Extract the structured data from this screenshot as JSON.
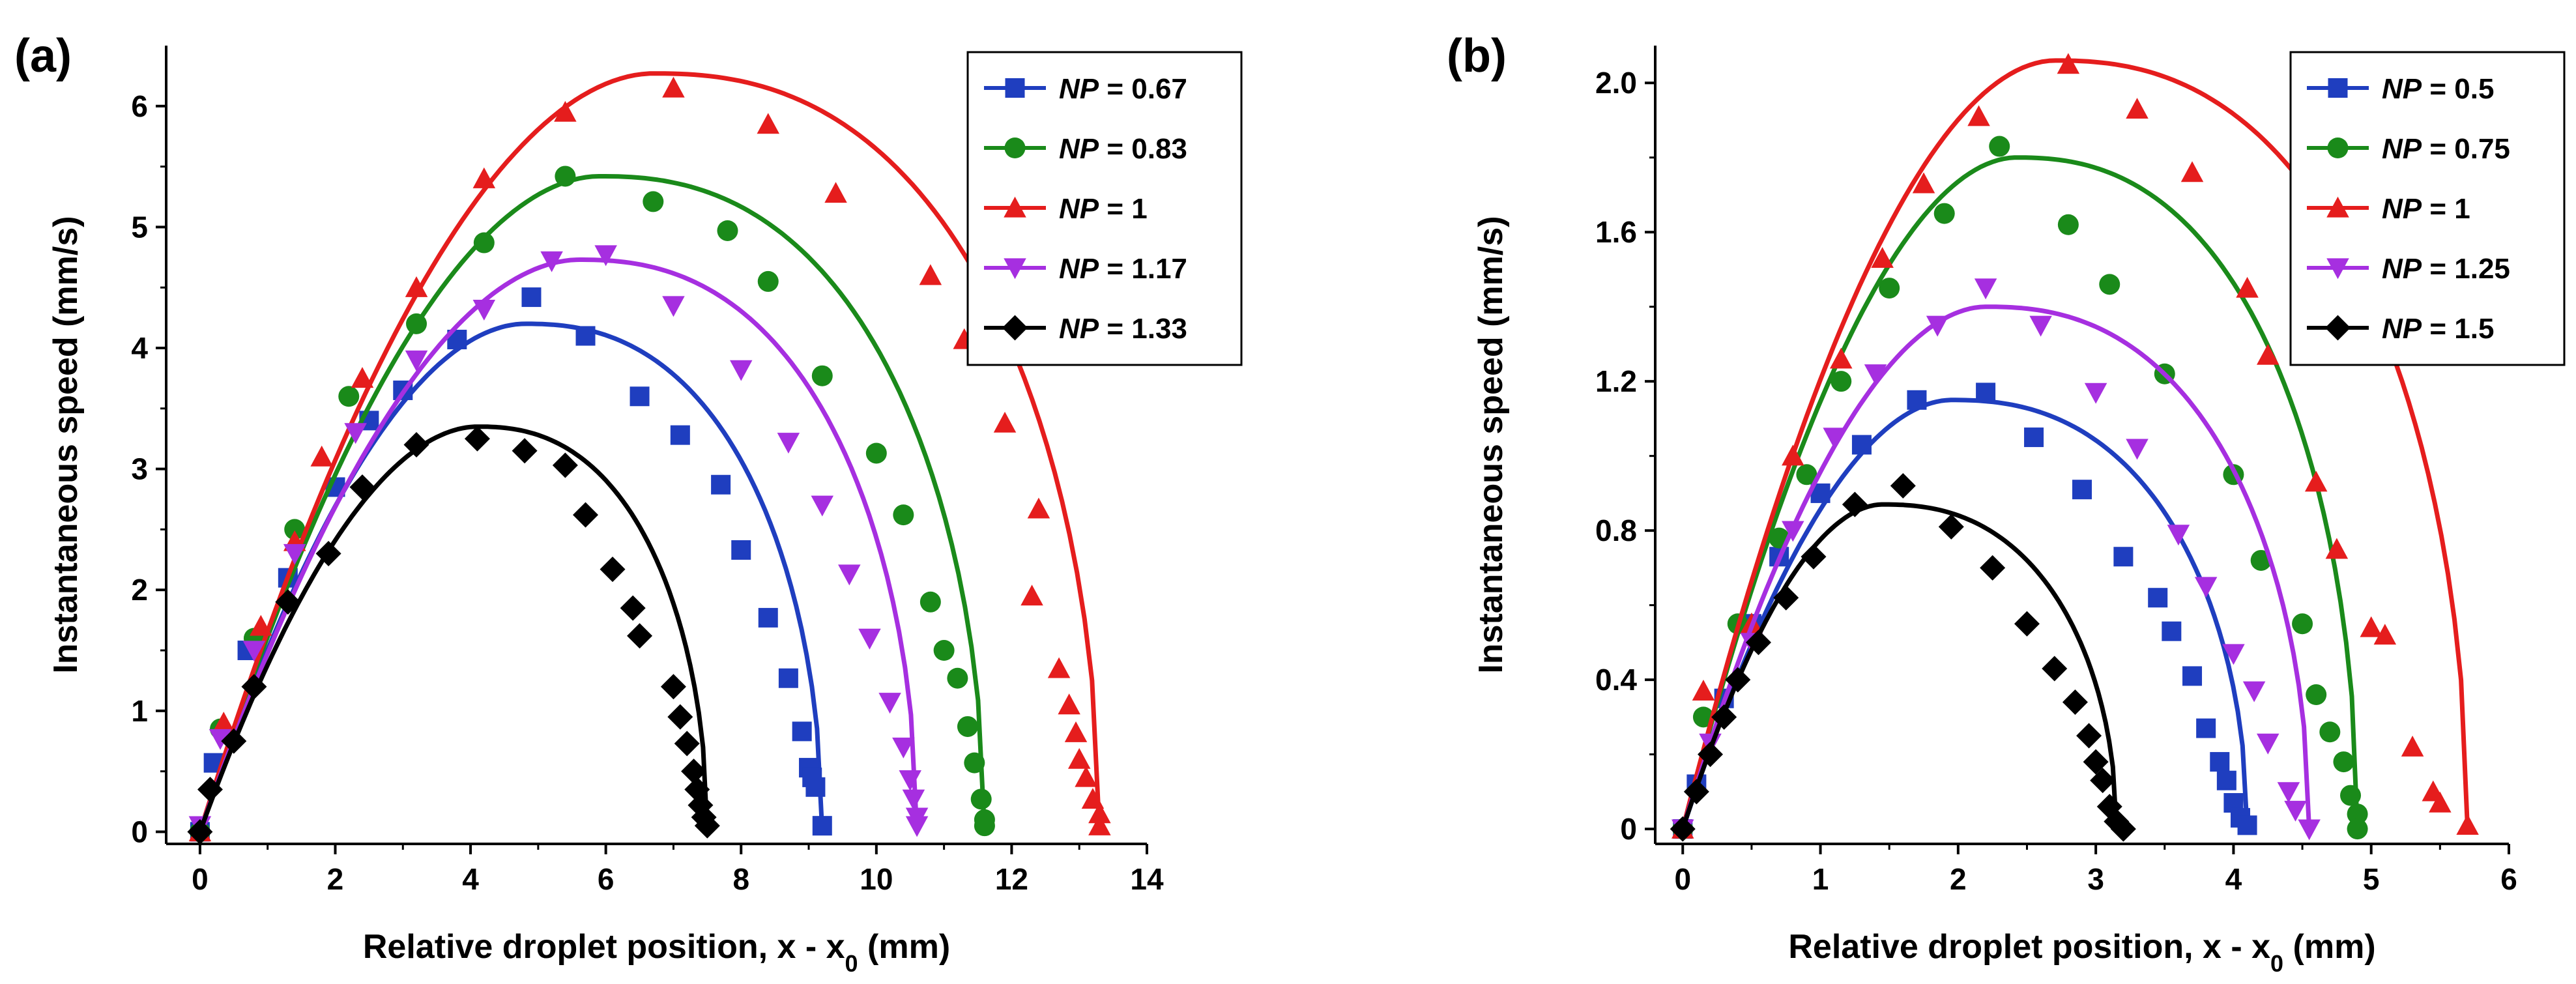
{
  "chart_data": [
    {
      "type": "scatter",
      "panel_label": "(a)",
      "xlabel": "Relative droplet position, x - x",
      "xlabel_sub": "0",
      "xlabel_unit": " (mm)",
      "ylabel": "Instantaneous speed (mm/s)",
      "xlim": [
        -0.5,
        14
      ],
      "ylim": [
        -0.1,
        6.5
      ],
      "xticks": [
        0,
        2,
        4,
        6,
        8,
        10,
        12,
        14
      ],
      "yticks": [
        0,
        1,
        2,
        3,
        4,
        5,
        6
      ],
      "xtick_labels": [
        "0",
        "2",
        "4",
        "6",
        "8",
        "10",
        "12",
        "14"
      ],
      "ytick_labels": [
        "0",
        "1",
        "2",
        "3",
        "4",
        "5",
        "6"
      ],
      "legend_position": "top-right",
      "series": [
        {
          "name": "NP = 0.67",
          "label_var": "NP",
          "label_val": " = 0.67",
          "color": "#1f3ebf",
          "marker": "square",
          "fit_peak": [
            4.8,
            4.2
          ],
          "fit_end": 9.2,
          "points": [
            [
              0,
              0
            ],
            [
              0.2,
              0.57
            ],
            [
              0.7,
              1.5
            ],
            [
              1.3,
              2.1
            ],
            [
              2.0,
              2.85
            ],
            [
              2.5,
              3.4
            ],
            [
              3.0,
              3.65
            ],
            [
              3.8,
              4.07
            ],
            [
              4.9,
              4.42
            ],
            [
              5.7,
              4.1
            ],
            [
              6.5,
              3.6
            ],
            [
              7.1,
              3.28
            ],
            [
              7.7,
              2.87
            ],
            [
              8.0,
              2.33
            ],
            [
              8.4,
              1.77
            ],
            [
              8.7,
              1.27
            ],
            [
              8.9,
              0.83
            ],
            [
              9.0,
              0.53
            ],
            [
              9.05,
              0.45
            ],
            [
              9.1,
              0.37
            ],
            [
              9.2,
              0.05
            ]
          ]
        },
        {
          "name": "NP = 0.83",
          "label_var": "NP",
          "label_val": " = 0.83",
          "color": "#1a8a1a",
          "marker": "circle",
          "fit_peak": [
            5.9,
            5.42
          ],
          "fit_end": 11.6,
          "points": [
            [
              0,
              0
            ],
            [
              0.3,
              0.85
            ],
            [
              0.8,
              1.6
            ],
            [
              1.4,
              2.5
            ],
            [
              2.2,
              3.6
            ],
            [
              3.2,
              4.2
            ],
            [
              4.2,
              4.87
            ],
            [
              5.4,
              5.42
            ],
            [
              6.7,
              5.21
            ],
            [
              7.8,
              4.97
            ],
            [
              8.4,
              4.55
            ],
            [
              9.2,
              3.77
            ],
            [
              10.0,
              3.13
            ],
            [
              10.4,
              2.62
            ],
            [
              10.8,
              1.9
            ],
            [
              11.0,
              1.5
            ],
            [
              11.2,
              1.27
            ],
            [
              11.35,
              0.87
            ],
            [
              11.45,
              0.57
            ],
            [
              11.55,
              0.27
            ],
            [
              11.6,
              0.1
            ],
            [
              11.6,
              0.05
            ]
          ]
        },
        {
          "name": "NP = 1",
          "label_var": "NP",
          "label_val": " = 1",
          "color": "#e51d1d",
          "marker": "triangle-up",
          "fit_peak": [
            6.7,
            6.27
          ],
          "fit_end": 13.3,
          "points": [
            [
              0,
              0
            ],
            [
              0.35,
              0.9
            ],
            [
              0.9,
              1.7
            ],
            [
              1.4,
              2.4
            ],
            [
              1.8,
              3.1
            ],
            [
              2.4,
              3.75
            ],
            [
              3.2,
              4.5
            ],
            [
              4.2,
              5.4
            ],
            [
              5.4,
              5.95
            ],
            [
              7.0,
              6.15
            ],
            [
              8.4,
              5.85
            ],
            [
              9.4,
              5.28
            ],
            [
              10.8,
              4.6
            ],
            [
              11.3,
              4.07
            ],
            [
              11.9,
              3.38
            ],
            [
              12.4,
              2.67
            ],
            [
              12.3,
              1.95
            ],
            [
              12.7,
              1.35
            ],
            [
              12.85,
              1.05
            ],
            [
              12.95,
              0.82
            ],
            [
              13.0,
              0.6
            ],
            [
              13.1,
              0.45
            ],
            [
              13.2,
              0.27
            ],
            [
              13.3,
              0.15
            ],
            [
              13.3,
              0.05
            ]
          ]
        },
        {
          "name": "NP = 1.17",
          "label_var": "NP",
          "label_val": " = 1.17",
          "color": "#a62fe0",
          "marker": "triangle-down",
          "fit_peak": [
            5.6,
            4.73
          ],
          "fit_end": 10.6,
          "points": [
            [
              0,
              0.05
            ],
            [
              0.3,
              0.77
            ],
            [
              0.8,
              1.5
            ],
            [
              1.4,
              2.3
            ],
            [
              2.3,
              3.3
            ],
            [
              3.2,
              3.9
            ],
            [
              4.2,
              4.32
            ],
            [
              5.2,
              4.72
            ],
            [
              6.0,
              4.77
            ],
            [
              7.0,
              4.35
            ],
            [
              8.0,
              3.82
            ],
            [
              8.7,
              3.22
            ],
            [
              9.2,
              2.7
            ],
            [
              9.6,
              2.13
            ],
            [
              9.9,
              1.6
            ],
            [
              10.2,
              1.07
            ],
            [
              10.4,
              0.7
            ],
            [
              10.5,
              0.43
            ],
            [
              10.55,
              0.27
            ],
            [
              10.6,
              0.12
            ],
            [
              10.6,
              0.05
            ]
          ]
        },
        {
          "name": "NP = 1.33",
          "label_var": "NP",
          "label_val": " = 1.33",
          "color": "#000000",
          "marker": "diamond",
          "fit_peak": [
            4.1,
            3.35
          ],
          "fit_end": 7.5,
          "points": [
            [
              0,
              0
            ],
            [
              0.15,
              0.35
            ],
            [
              0.5,
              0.75
            ],
            [
              0.8,
              1.2
            ],
            [
              1.3,
              1.9
            ],
            [
              1.9,
              2.3
            ],
            [
              2.4,
              2.85
            ],
            [
              3.2,
              3.2
            ],
            [
              4.1,
              3.25
            ],
            [
              4.8,
              3.15
            ],
            [
              5.4,
              3.03
            ],
            [
              5.7,
              2.62
            ],
            [
              6.1,
              2.17
            ],
            [
              6.4,
              1.85
            ],
            [
              6.5,
              1.62
            ],
            [
              7.0,
              1.2
            ],
            [
              7.1,
              0.95
            ],
            [
              7.2,
              0.73
            ],
            [
              7.3,
              0.5
            ],
            [
              7.35,
              0.35
            ],
            [
              7.4,
              0.22
            ],
            [
              7.45,
              0.12
            ],
            [
              7.5,
              0.05
            ]
          ]
        }
      ]
    },
    {
      "type": "scatter",
      "panel_label": "(b)",
      "xlabel": "Relative droplet position, x - x",
      "xlabel_sub": "0",
      "xlabel_unit": " (mm)",
      "ylabel": "Instantaneous speed (mm/s)",
      "xlim": [
        -0.2,
        6
      ],
      "ylim": [
        -0.04,
        2.1
      ],
      "xticks": [
        0,
        1,
        2,
        3,
        4,
        5,
        6
      ],
      "yticks": [
        0,
        0.4,
        0.8,
        1.2,
        1.6,
        2.0
      ],
      "xtick_labels": [
        "0",
        "1",
        "2",
        "3",
        "4",
        "5",
        "6"
      ],
      "ytick_labels": [
        "0",
        "0.4",
        "0.8",
        "1.2",
        "1.6",
        "2.0"
      ],
      "legend_position": "top-right",
      "series": [
        {
          "name": "NP = 0.5",
          "label_var": "NP",
          "label_val": " = 0.5",
          "color": "#1f3ebf",
          "marker": "square",
          "fit_peak": [
            1.95,
            1.15
          ],
          "fit_end": 4.1,
          "points": [
            [
              0,
              0
            ],
            [
              0.1,
              0.12
            ],
            [
              0.3,
              0.35
            ],
            [
              0.5,
              0.55
            ],
            [
              0.7,
              0.73
            ],
            [
              1.0,
              0.9
            ],
            [
              1.3,
              1.03
            ],
            [
              1.7,
              1.15
            ],
            [
              2.2,
              1.17
            ],
            [
              2.55,
              1.05
            ],
            [
              2.9,
              0.91
            ],
            [
              3.2,
              0.73
            ],
            [
              3.45,
              0.62
            ],
            [
              3.55,
              0.53
            ],
            [
              3.7,
              0.41
            ],
            [
              3.8,
              0.27
            ],
            [
              3.9,
              0.18
            ],
            [
              3.95,
              0.13
            ],
            [
              4.0,
              0.07
            ],
            [
              4.05,
              0.03
            ],
            [
              4.1,
              0.01
            ]
          ]
        },
        {
          "name": "NP = 0.75",
          "label_var": "NP",
          "label_val": " = 0.75",
          "color": "#1a8a1a",
          "marker": "circle",
          "fit_peak": [
            2.42,
            1.8
          ],
          "fit_end": 4.9,
          "points": [
            [
              0,
              0
            ],
            [
              0.15,
              0.3
            ],
            [
              0.4,
              0.55
            ],
            [
              0.7,
              0.78
            ],
            [
              0.9,
              0.95
            ],
            [
              1.15,
              1.2
            ],
            [
              1.5,
              1.45
            ],
            [
              1.9,
              1.65
            ],
            [
              2.3,
              1.83
            ],
            [
              2.8,
              1.62
            ],
            [
              3.1,
              1.46
            ],
            [
              3.5,
              1.22
            ],
            [
              4.0,
              0.95
            ],
            [
              4.2,
              0.72
            ],
            [
              4.5,
              0.55
            ],
            [
              4.6,
              0.36
            ],
            [
              4.7,
              0.26
            ],
            [
              4.8,
              0.18
            ],
            [
              4.85,
              0.09
            ],
            [
              4.9,
              0.04
            ],
            [
              4.9,
              0.0
            ]
          ]
        },
        {
          "name": "NP = 1",
          "label_var": "NP",
          "label_val": " = 1",
          "color": "#e51d1d",
          "marker": "triangle-up",
          "fit_peak": [
            2.7,
            2.06
          ],
          "fit_end": 5.7,
          "points": [
            [
              0,
              0
            ],
            [
              0.15,
              0.37
            ],
            [
              0.5,
              0.55
            ],
            [
              0.8,
              1.0
            ],
            [
              1.15,
              1.26
            ],
            [
              1.45,
              1.53
            ],
            [
              1.75,
              1.73
            ],
            [
              2.15,
              1.91
            ],
            [
              2.8,
              2.05
            ],
            [
              3.3,
              1.93
            ],
            [
              3.7,
              1.76
            ],
            [
              4.1,
              1.45
            ],
            [
              4.25,
              1.27
            ],
            [
              4.6,
              0.93
            ],
            [
              4.75,
              0.75
            ],
            [
              5.0,
              0.54
            ],
            [
              5.1,
              0.52
            ],
            [
              5.3,
              0.22
            ],
            [
              5.45,
              0.1
            ],
            [
              5.5,
              0.07
            ],
            [
              5.7,
              0.01
            ]
          ]
        },
        {
          "name": "NP = 1.25",
          "label_var": "NP",
          "label_val": " = 1.25",
          "color": "#a62fe0",
          "marker": "triangle-down",
          "fit_peak": [
            2.2,
            1.4
          ],
          "fit_end": 4.55,
          "points": [
            [
              0,
              0
            ],
            [
              0.2,
              0.23
            ],
            [
              0.5,
              0.5
            ],
            [
              0.8,
              0.8
            ],
            [
              1.1,
              1.05
            ],
            [
              1.4,
              1.22
            ],
            [
              1.85,
              1.35
            ],
            [
              2.2,
              1.45
            ],
            [
              2.6,
              1.35
            ],
            [
              3.0,
              1.17
            ],
            [
              3.3,
              1.02
            ],
            [
              3.6,
              0.79
            ],
            [
              3.8,
              0.65
            ],
            [
              4.0,
              0.47
            ],
            [
              4.15,
              0.37
            ],
            [
              4.25,
              0.23
            ],
            [
              4.4,
              0.1
            ],
            [
              4.45,
              0.05
            ],
            [
              4.55,
              0.0
            ]
          ]
        },
        {
          "name": "NP = 1.5",
          "label_var": "NP",
          "label_val": " = 1.5",
          "color": "#000000",
          "marker": "diamond",
          "fit_peak": [
            1.45,
            0.87
          ],
          "fit_end": 3.15,
          "points": [
            [
              0,
              0
            ],
            [
              0.1,
              0.1
            ],
            [
              0.2,
              0.2
            ],
            [
              0.3,
              0.3
            ],
            [
              0.4,
              0.4
            ],
            [
              0.55,
              0.5
            ],
            [
              0.75,
              0.62
            ],
            [
              0.95,
              0.73
            ],
            [
              1.25,
              0.87
            ],
            [
              1.6,
              0.92
            ],
            [
              1.95,
              0.81
            ],
            [
              2.25,
              0.7
            ],
            [
              2.5,
              0.55
            ],
            [
              2.7,
              0.43
            ],
            [
              2.85,
              0.34
            ],
            [
              2.95,
              0.25
            ],
            [
              3.0,
              0.18
            ],
            [
              3.05,
              0.13
            ],
            [
              3.1,
              0.06
            ],
            [
              3.15,
              0.02
            ],
            [
              3.2,
              0.0
            ]
          ]
        }
      ]
    }
  ]
}
